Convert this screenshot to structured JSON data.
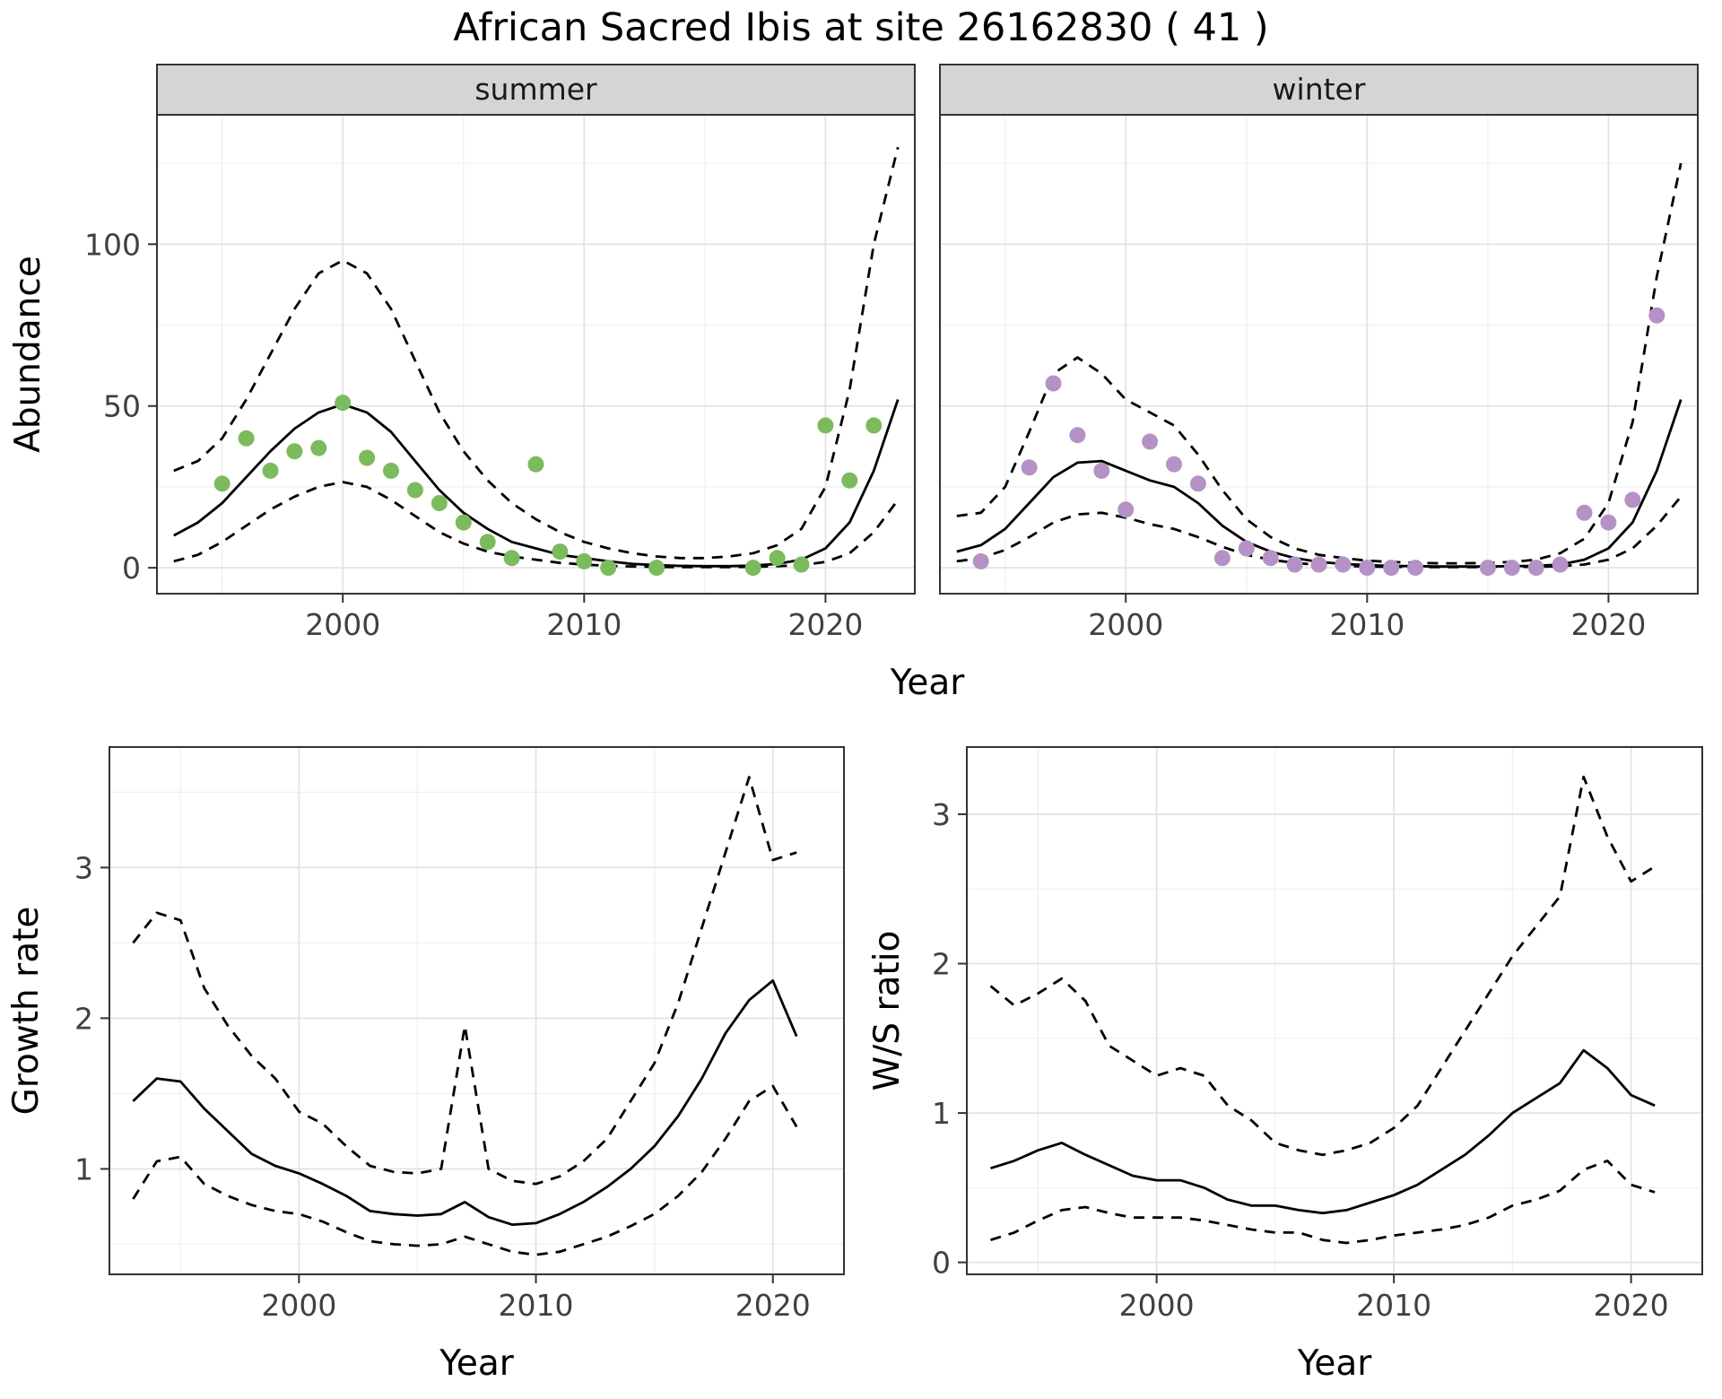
{
  "title": "African Sacred Ibis at site 26162830 ( 41 )",
  "style": {
    "background": "#ffffff",
    "line_color": "#000000",
    "summer_point_color": "#7bbb5d",
    "winter_point_color": "#b592c6",
    "strip_fill": "#d5d5d5",
    "strip_border": "#333333",
    "strip_text_color": "#1a1a1a",
    "panel_border": "#333333",
    "grid_major": "#e3e3e3",
    "grid_minor": "#f0f0f0",
    "tick_label_color": "#404040",
    "point_radius": 9
  },
  "chart_data": [
    {
      "id": "abundance_by_season",
      "type": "scatter",
      "title": "African Sacred Ibis at site 26162830 ( 41 )",
      "xlabel": "Year",
      "ylabel": "Abundance",
      "xlim": [
        1992.3,
        2023.7
      ],
      "ylim": [
        -8,
        140
      ],
      "xticks": [
        2000,
        2010,
        2020
      ],
      "yticks": [
        0,
        50,
        100
      ],
      "grid": true,
      "legend": "none",
      "facets": [
        {
          "label": "summer",
          "point_color": "#7bbb5d",
          "points_x": [
            1995,
            1996,
            1997,
            1998,
            1999,
            2000,
            2001,
            2002,
            2003,
            2004,
            2005,
            2006,
            2007,
            2008,
            2009,
            2010,
            2011,
            2013,
            2017,
            2018,
            2019,
            2020,
            2021,
            2022
          ],
          "points_y": [
            26,
            40,
            30,
            36,
            37,
            51,
            34,
            30,
            24,
            20,
            14,
            8,
            3,
            32,
            5,
            2,
            0,
            0,
            0,
            3,
            1,
            44,
            27,
            44
          ],
          "line_x": [
            1993,
            1994,
            1995,
            1996,
            1997,
            1998,
            1999,
            2000,
            2001,
            2002,
            2003,
            2004,
            2005,
            2006,
            2007,
            2008,
            2009,
            2010,
            2011,
            2012,
            2013,
            2014,
            2015,
            2016,
            2017,
            2018,
            2019,
            2020,
            2021,
            2022,
            2023
          ],
          "fit": [
            10,
            14,
            20,
            28,
            36,
            43,
            48,
            50.5,
            48,
            42,
            33,
            24,
            17,
            12,
            8,
            6,
            4,
            3,
            2,
            1.2,
            0.8,
            0.6,
            0.5,
            0.5,
            0.7,
            1.2,
            2.5,
            6,
            14,
            30,
            52
          ],
          "upper_ci": [
            30,
            33,
            40,
            52,
            66,
            80,
            91,
            95,
            91,
            80,
            64,
            48,
            36,
            27,
            20,
            15,
            11,
            8,
            6,
            4.5,
            3.5,
            3,
            3,
            3.5,
            4.5,
            7,
            12,
            25,
            55,
            100,
            130
          ],
          "lower_ci": [
            2,
            4,
            8,
            13,
            18,
            22,
            25,
            26.5,
            25,
            21,
            16,
            11,
            7.5,
            5,
            3.5,
            2.5,
            1.5,
            1,
            0.6,
            0.4,
            0.3,
            0.2,
            0.2,
            0.2,
            0.3,
            0.5,
            0.8,
            1.8,
            4.5,
            11,
            21
          ]
        },
        {
          "label": "winter",
          "point_color": "#b592c6",
          "points_x": [
            1994,
            1996,
            1997,
            1998,
            1999,
            2000,
            2001,
            2002,
            2003,
            2004,
            2005,
            2006,
            2007,
            2008,
            2009,
            2010,
            2011,
            2012,
            2015,
            2016,
            2017,
            2018,
            2019,
            2020,
            2021,
            2022
          ],
          "points_y": [
            2,
            31,
            57,
            41,
            30,
            18,
            39,
            32,
            26,
            3,
            6,
            3,
            1,
            1,
            1,
            0,
            0,
            0,
            0,
            0,
            0,
            1,
            17,
            14,
            21,
            78
          ],
          "line_x": [
            1993,
            1994,
            1995,
            1996,
            1997,
            1998,
            1999,
            2000,
            2001,
            2002,
            2003,
            2004,
            2005,
            2006,
            2007,
            2008,
            2009,
            2010,
            2011,
            2012,
            2013,
            2014,
            2015,
            2016,
            2017,
            2018,
            2019,
            2020,
            2021,
            2022,
            2023
          ],
          "fit": [
            5,
            7,
            12,
            20,
            28,
            32.5,
            33,
            30,
            27,
            25,
            20,
            13,
            8,
            5,
            3,
            1.8,
            1.2,
            0.8,
            0.6,
            0.5,
            0.4,
            0.4,
            0.4,
            0.5,
            0.6,
            1,
            2.5,
            6,
            14,
            30,
            52
          ],
          "upper_ci": [
            16,
            17,
            25,
            42,
            60,
            65,
            60,
            52,
            48,
            44,
            35,
            24,
            15,
            9.5,
            6,
            4,
            3,
            2.2,
            1.8,
            1.5,
            1.4,
            1.4,
            1.5,
            1.8,
            2.5,
            4.5,
            9,
            20,
            45,
            90,
            125
          ],
          "lower_ci": [
            2,
            3,
            5.5,
            9.5,
            14,
            16.5,
            17,
            15.5,
            13.5,
            12,
            9.5,
            6.5,
            4,
            2.5,
            1.5,
            0.9,
            0.6,
            0.4,
            0.3,
            0.25,
            0.2,
            0.2,
            0.2,
            0.25,
            0.3,
            0.5,
            1,
            2.5,
            6,
            13,
            22
          ]
        }
      ]
    },
    {
      "id": "growth_rate",
      "type": "line",
      "title": "",
      "xlabel": "Year",
      "ylabel": "Growth rate",
      "xlim": [
        1992,
        2023
      ],
      "ylim": [
        0.3,
        3.8
      ],
      "xticks": [
        2000,
        2010,
        2020
      ],
      "yticks": [
        1,
        2,
        3
      ],
      "grid": true,
      "legend": "none",
      "x": [
        1993,
        1994,
        1995,
        1996,
        1997,
        1998,
        1999,
        2000,
        2001,
        2002,
        2003,
        2004,
        2005,
        2006,
        2007,
        2008,
        2009,
        2010,
        2011,
        2012,
        2013,
        2014,
        2015,
        2016,
        2017,
        2018,
        2019,
        2020,
        2021
      ],
      "series": [
        {
          "name": "estimate",
          "style": "solid",
          "values": [
            1.45,
            1.6,
            1.58,
            1.4,
            1.25,
            1.1,
            1.02,
            0.97,
            0.9,
            0.82,
            0.72,
            0.7,
            0.69,
            0.7,
            0.78,
            0.68,
            0.63,
            0.64,
            0.7,
            0.78,
            0.88,
            1.0,
            1.15,
            1.35,
            1.6,
            1.9,
            2.12,
            2.25,
            1.88
          ]
        },
        {
          "name": "upper_ci",
          "style": "dashed",
          "values": [
            2.5,
            2.7,
            2.65,
            2.2,
            1.95,
            1.75,
            1.6,
            1.38,
            1.3,
            1.15,
            1.02,
            0.98,
            0.97,
            1.0,
            1.95,
            1.0,
            0.92,
            0.9,
            0.95,
            1.05,
            1.2,
            1.45,
            1.7,
            2.1,
            2.6,
            3.1,
            3.6,
            3.05,
            3.1
          ]
        },
        {
          "name": "lower_ci",
          "style": "dashed",
          "values": [
            0.8,
            1.05,
            1.08,
            0.9,
            0.82,
            0.76,
            0.72,
            0.7,
            0.65,
            0.58,
            0.52,
            0.5,
            0.49,
            0.5,
            0.55,
            0.5,
            0.45,
            0.43,
            0.45,
            0.5,
            0.55,
            0.62,
            0.7,
            0.82,
            0.98,
            1.2,
            1.45,
            1.55,
            1.28
          ]
        }
      ]
    },
    {
      "id": "ws_ratio",
      "type": "line",
      "title": "",
      "xlabel": "Year",
      "ylabel": "W/S ratio",
      "xlim": [
        1992,
        2023
      ],
      "ylim": [
        -0.08,
        3.45
      ],
      "xticks": [
        2000,
        2010,
        2020
      ],
      "yticks": [
        0,
        1,
        2,
        3
      ],
      "grid": true,
      "legend": "none",
      "x": [
        1993,
        1994,
        1995,
        1996,
        1997,
        1998,
        1999,
        2000,
        2001,
        2002,
        2003,
        2004,
        2005,
        2006,
        2007,
        2008,
        2009,
        2010,
        2011,
        2012,
        2013,
        2014,
        2015,
        2016,
        2017,
        2018,
        2019,
        2020,
        2021
      ],
      "series": [
        {
          "name": "estimate",
          "style": "solid",
          "values": [
            0.63,
            0.68,
            0.75,
            0.8,
            0.72,
            0.65,
            0.58,
            0.55,
            0.55,
            0.5,
            0.42,
            0.38,
            0.38,
            0.35,
            0.33,
            0.35,
            0.4,
            0.45,
            0.52,
            0.62,
            0.72,
            0.85,
            1.0,
            1.1,
            1.2,
            1.42,
            1.3,
            1.12,
            1.05
          ]
        },
        {
          "name": "upper_ci",
          "style": "dashed",
          "values": [
            1.85,
            1.72,
            1.8,
            1.9,
            1.75,
            1.45,
            1.35,
            1.25,
            1.3,
            1.25,
            1.05,
            0.95,
            0.8,
            0.75,
            0.72,
            0.75,
            0.8,
            0.9,
            1.05,
            1.3,
            1.55,
            1.8,
            2.05,
            2.25,
            2.45,
            3.25,
            2.85,
            2.55,
            2.65
          ]
        },
        {
          "name": "lower_ci",
          "style": "dashed",
          "values": [
            0.15,
            0.2,
            0.28,
            0.35,
            0.37,
            0.33,
            0.3,
            0.3,
            0.3,
            0.28,
            0.25,
            0.22,
            0.2,
            0.2,
            0.15,
            0.13,
            0.15,
            0.18,
            0.2,
            0.22,
            0.25,
            0.3,
            0.38,
            0.42,
            0.48,
            0.62,
            0.68,
            0.52,
            0.47
          ]
        }
      ]
    }
  ]
}
